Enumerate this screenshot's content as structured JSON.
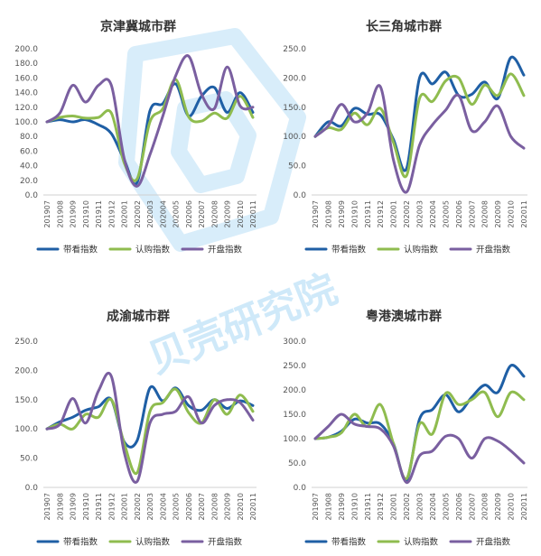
{
  "watermark": {
    "text": "贝壳研究院"
  },
  "colors": {
    "带看指数": "#1f5fa5",
    "认购指数": "#8fbc4f",
    "开盘指数": "#7a5fa0"
  },
  "chart_data": [
    {
      "type": "line",
      "title": "京津冀城市群",
      "categories": [
        "201907",
        "201908",
        "201909",
        "201910",
        "201911",
        "201912",
        "202001",
        "202002",
        "202003",
        "202004",
        "202005",
        "202006",
        "202007",
        "202008",
        "202009",
        "202010",
        "202011"
      ],
      "ylim": [
        0,
        200
      ],
      "yticks": [
        "0.0",
        "20.0",
        "40.0",
        "60.0",
        "80.0",
        "100.0",
        "120.0",
        "140.0",
        "160.0",
        "180.0",
        "200.0"
      ],
      "legend": "bottom",
      "series": [
        {
          "name": "带看指数",
          "values": [
            100,
            103,
            100,
            103,
            96,
            84,
            48,
            17,
            115,
            125,
            152,
            108,
            135,
            147,
            113,
            140,
            113
          ]
        },
        {
          "name": "认购指数",
          "values": [
            100,
            106,
            108,
            105,
            106,
            112,
            44,
            22,
            100,
            118,
            158,
            107,
            101,
            112,
            105,
            135,
            106
          ]
        },
        {
          "name": "开盘指数",
          "values": [
            100,
            112,
            150,
            127,
            150,
            150,
            50,
            12,
            55,
            108,
            163,
            190,
            138,
            118,
            175,
            122,
            120
          ]
        }
      ]
    },
    {
      "type": "line",
      "title": "长三角城市群",
      "categories": [
        "201907",
        "201908",
        "201909",
        "201910",
        "201911",
        "201912",
        "202001",
        "202002",
        "202003",
        "202004",
        "202005",
        "202006",
        "202007",
        "202008",
        "202009",
        "202010",
        "202011"
      ],
      "ylim": [
        0,
        250
      ],
      "yticks": [
        "0.0",
        "50.0",
        "100.0",
        "150.0",
        "200.0",
        "250.0"
      ],
      "legend": "bottom",
      "series": [
        {
          "name": "带看指数",
          "values": [
            100,
            125,
            118,
            148,
            138,
            137,
            95,
            45,
            200,
            190,
            210,
            170,
            172,
            193,
            165,
            235,
            205
          ]
        },
        {
          "name": "认购指数",
          "values": [
            100,
            115,
            112,
            140,
            120,
            148,
            90,
            33,
            165,
            160,
            195,
            200,
            155,
            188,
            170,
            207,
            170
          ]
        },
        {
          "name": "开盘指数",
          "values": [
            100,
            118,
            155,
            125,
            140,
            185,
            60,
            5,
            85,
            120,
            145,
            170,
            110,
            125,
            152,
            100,
            80
          ]
        }
      ]
    },
    {
      "type": "line",
      "title": "成渝城市群",
      "categories": [
        "201907",
        "201908",
        "201909",
        "201910",
        "201911",
        "201912",
        "202001",
        "202002",
        "202003",
        "202004",
        "202005",
        "202006",
        "202007",
        "202008",
        "202009",
        "202010",
        "202011"
      ],
      "ylim": [
        0,
        250
      ],
      "yticks": [
        "0.0",
        "50.0",
        "100.0",
        "150.0",
        "200.0",
        "250.0"
      ],
      "legend": "bottom",
      "series": [
        {
          "name": "带看指数",
          "values": [
            100,
            112,
            120,
            132,
            138,
            150,
            78,
            80,
            170,
            148,
            170,
            140,
            132,
            150,
            135,
            148,
            140
          ]
        },
        {
          "name": "认购指数",
          "values": [
            100,
            108,
            100,
            125,
            120,
            150,
            75,
            25,
            130,
            145,
            168,
            128,
            110,
            150,
            125,
            158,
            130
          ]
        },
        {
          "name": "开盘指数",
          "values": [
            100,
            108,
            152,
            110,
            165,
            190,
            60,
            10,
            110,
            125,
            130,
            155,
            110,
            140,
            150,
            145,
            115
          ]
        }
      ]
    },
    {
      "type": "line",
      "title": "粤港澳城市群",
      "categories": [
        "201907",
        "201908",
        "201909",
        "201910",
        "201911",
        "201912",
        "202001",
        "202002",
        "202003",
        "202004",
        "202005",
        "202006",
        "202007",
        "202008",
        "202009",
        "202010",
        "202011"
      ],
      "ylim": [
        0,
        300
      ],
      "yticks": [
        "0.0",
        "50.0",
        "100.0",
        "150.0",
        "200.0",
        "250.0",
        "300.0"
      ],
      "legend": "bottom",
      "series": [
        {
          "name": "带看指数",
          "values": [
            100,
            103,
            115,
            140,
            132,
            130,
            90,
            15,
            140,
            160,
            190,
            155,
            185,
            210,
            195,
            250,
            228
          ]
        },
        {
          "name": "认购指数",
          "values": [
            100,
            103,
            112,
            150,
            125,
            170,
            90,
            18,
            130,
            110,
            193,
            170,
            180,
            195,
            145,
            195,
            180
          ]
        },
        {
          "name": "开盘指数",
          "values": [
            100,
            125,
            150,
            130,
            125,
            120,
            85,
            10,
            65,
            75,
            105,
            100,
            60,
            100,
            95,
            75,
            50
          ]
        }
      ]
    }
  ]
}
